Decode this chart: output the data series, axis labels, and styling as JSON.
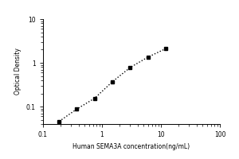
{
  "x_data": [
    0.188,
    0.375,
    0.75,
    1.5,
    3.0,
    6.0,
    12.0
  ],
  "y_data": [
    0.046,
    0.088,
    0.155,
    0.37,
    0.78,
    1.35,
    2.1
  ],
  "xlim": [
    0.1,
    100
  ],
  "ylim": [
    0.04,
    10
  ],
  "xlabel": "Human SEMA3A concentration(ng/mL)",
  "ylabel": "Optical Density",
  "line_color": "#000000",
  "marker_color": "#000000",
  "marker": "s",
  "linestyle": ":",
  "linewidth": 1.0,
  "markersize": 3.5,
  "bg_color": "#ffffff",
  "xlabel_fontsize": 5.5,
  "ylabel_fontsize": 5.5,
  "tick_fontsize": 5.5,
  "x_ticks": [
    0.1,
    1,
    10,
    100
  ],
  "y_ticks": [
    0.1,
    1,
    10
  ]
}
